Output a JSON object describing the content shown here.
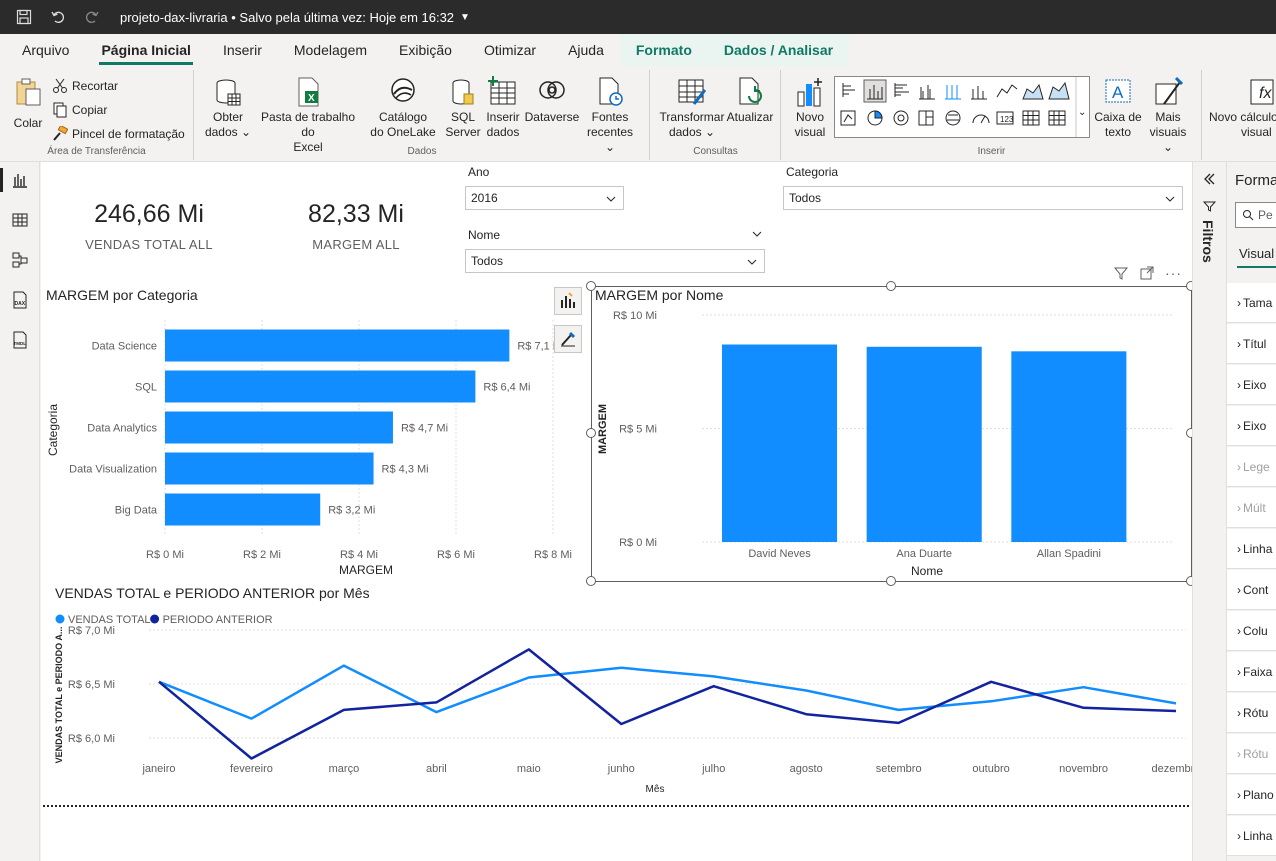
{
  "titlebar": {
    "doc_title": "projeto-dax-livraria • Salvo pela última vez: Hoje em 16:32"
  },
  "menu": {
    "tabs": [
      "Arquivo",
      "Página Inicial",
      "Inserir",
      "Modelagem",
      "Exibição",
      "Otimizar",
      "Ajuda",
      "Formato",
      "Dados / Analisar"
    ]
  },
  "ribbon": {
    "clipboard": {
      "paste": "Colar",
      "cut": "Recortar",
      "copy": "Copiar",
      "format_painter": "Pincel de formatação",
      "label": "Área de Transferência"
    },
    "data": {
      "get_data_1": "Obter",
      "get_data_2": "dados",
      "excel_1": "Pasta de trabalho do",
      "excel_2": "Excel",
      "onelake_1": "Catálogo",
      "onelake_2": "do OneLake",
      "sql_1": "SQL",
      "sql_2": "Server",
      "enter_1": "Inserir",
      "enter_2": "dados",
      "dataverse": "Dataverse",
      "recent_1": "Fontes",
      "recent_2": "recentes",
      "label": "Dados"
    },
    "queries": {
      "transform_1": "Transformar",
      "transform_2": "dados",
      "refresh": "Atualizar",
      "label": "Consultas"
    },
    "insert": {
      "new_visual_1": "Novo",
      "new_visual_2": "visual",
      "textbox_1": "Caixa de",
      "textbox_2": "texto",
      "more_visuals_1": "Mais",
      "more_visuals_2": "visuais",
      "label": "Inserir"
    },
    "calc": {
      "new_calc_1": "Novo cálculo",
      "new_calc_2": "visual"
    }
  },
  "kpis": [
    {
      "value": "246,66 Mi",
      "label": "VENDAS TOTAL ALL"
    },
    {
      "value": "82,33 Mi",
      "label": "MARGEM ALL"
    }
  ],
  "slicers": {
    "ano": {
      "title": "Ano",
      "value": "2016"
    },
    "nome": {
      "title": "Nome",
      "value": "Todos"
    },
    "categoria": {
      "title": "Categoria",
      "value": "Todos"
    }
  },
  "chart_data": [
    {
      "type": "bar",
      "orientation": "horizontal",
      "title": "MARGEM por Categoria",
      "xlabel": "MARGEM",
      "ylabel": "Categoria",
      "categories": [
        "Data Science",
        "SQL",
        "Data Analytics",
        "Data Visualization",
        "Big Data"
      ],
      "values": [
        7.1,
        6.4,
        4.7,
        4.3,
        3.2
      ],
      "data_labels": [
        "R$ 7,1 Mi",
        "R$ 6,4 Mi",
        "R$ 4,7 Mi",
        "R$ 4,3 Mi",
        "R$ 3,2 Mi"
      ],
      "xticks": [
        "R$ 0 Mi",
        "R$ 2 Mi",
        "R$ 4 Mi",
        "R$ 6 Mi",
        "R$ 8 Mi"
      ],
      "xlim": [
        0,
        8
      ],
      "color": "#118DFF"
    },
    {
      "type": "bar",
      "orientation": "vertical",
      "title": "MARGEM por Nome",
      "xlabel": "Nome",
      "ylabel": "MARGEM",
      "categories": [
        "David Neves",
        "Ana Duarte",
        "Allan Spadini"
      ],
      "values": [
        8.7,
        8.6,
        8.4
      ],
      "yticks": [
        "R$ 0 Mi",
        "R$ 5 Mi",
        "R$ 10 Mi"
      ],
      "ylim": [
        0,
        10
      ],
      "color": "#118DFF"
    },
    {
      "type": "line",
      "title": "VENDAS TOTAL e PERIODO ANTERIOR por Mês",
      "xlabel": "Mês",
      "ylabel": "VENDAS TOTAL e PERIODO A...",
      "categories": [
        "janeiro",
        "fevereiro",
        "março",
        "abril",
        "maio",
        "junho",
        "julho",
        "agosto",
        "setembro",
        "outubro",
        "novembro",
        "dezembro"
      ],
      "yticks": [
        "R$ 6,0 Mi",
        "R$ 6,5 Mi",
        "R$ 7,0 Mi"
      ],
      "ylim": [
        5.75,
        7.0
      ],
      "series": [
        {
          "name": "VENDAS TOTAL",
          "color": "#118DFF",
          "values": [
            6.52,
            6.18,
            6.67,
            6.24,
            6.56,
            6.65,
            6.57,
            6.44,
            6.26,
            6.34,
            6.47,
            6.32
          ]
        },
        {
          "name": "PERIODO ANTERIOR",
          "color": "#12239E",
          "values": [
            6.52,
            5.81,
            6.26,
            6.33,
            6.82,
            6.13,
            6.48,
            6.22,
            6.14,
            6.52,
            6.28,
            6.25
          ]
        }
      ],
      "legend_position": "top-left"
    }
  ],
  "filters_pane": {
    "label": "Filtros"
  },
  "format_pane": {
    "title": "Forma",
    "search": "Pe",
    "tab": "Visual",
    "items": [
      {
        "label": "Tama",
        "disabled": false
      },
      {
        "label": "Títul",
        "disabled": false
      },
      {
        "label": "Eixo",
        "disabled": false
      },
      {
        "label": "Eixo",
        "disabled": false
      },
      {
        "label": "Lege",
        "disabled": true
      },
      {
        "label": "Múlt",
        "disabled": true
      },
      {
        "label": "Linha",
        "disabled": false
      },
      {
        "label": "Cont",
        "disabled": false
      },
      {
        "label": "Colu",
        "disabled": false
      },
      {
        "label": "Faixa",
        "disabled": false
      },
      {
        "label": "Rótu",
        "disabled": false
      },
      {
        "label": "Rótu",
        "disabled": true
      },
      {
        "label": "Plano",
        "disabled": false
      },
      {
        "label": "Linha",
        "disabled": false
      }
    ]
  }
}
